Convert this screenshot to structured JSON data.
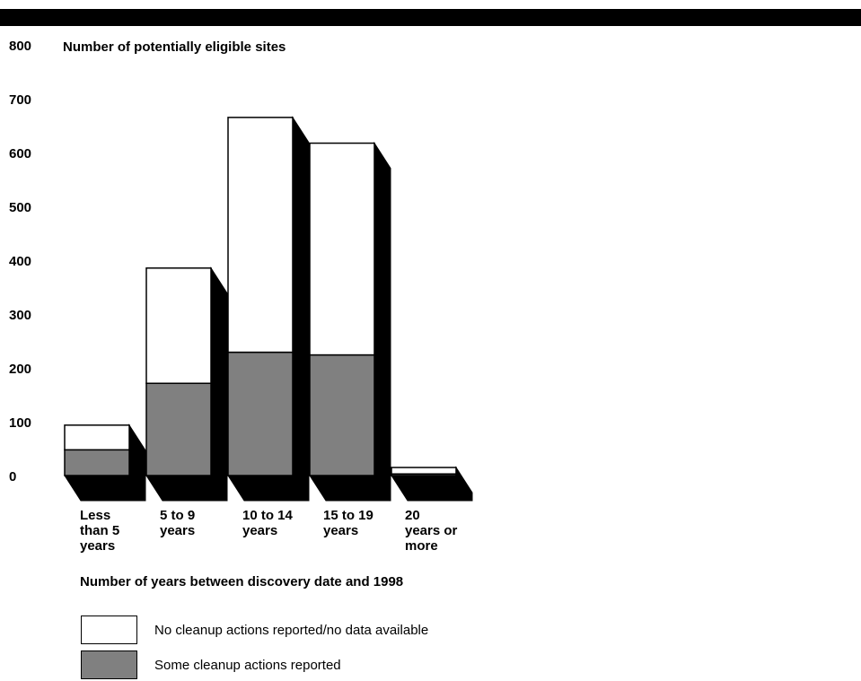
{
  "chart_data": {
    "type": "bar",
    "stacked": true,
    "ylabel": "Number of potentially eligible sites",
    "xlabel": "Number of years between discovery date and 1998",
    "ylim": [
      0,
      800
    ],
    "yticks": [
      "800",
      "700",
      "600",
      "500",
      "400",
      "300",
      "200",
      "100",
      "0"
    ],
    "categories": [
      "Less\nthan 5\nyears",
      "5 to 9\nyears",
      "10 to 14\nyears",
      "15 to 19\nyears",
      "20\nyears or\nmore"
    ],
    "series": [
      {
        "name": "Some cleanup actions reported",
        "color": "#808080",
        "values": [
          48,
          172,
          230,
          225,
          3
        ]
      },
      {
        "name": "No cleanup actions reported/no data available",
        "color": "#ffffff",
        "values": [
          46,
          215,
          438,
          395,
          12
        ]
      }
    ],
    "legend": "bottom-left",
    "grid": false
  }
}
